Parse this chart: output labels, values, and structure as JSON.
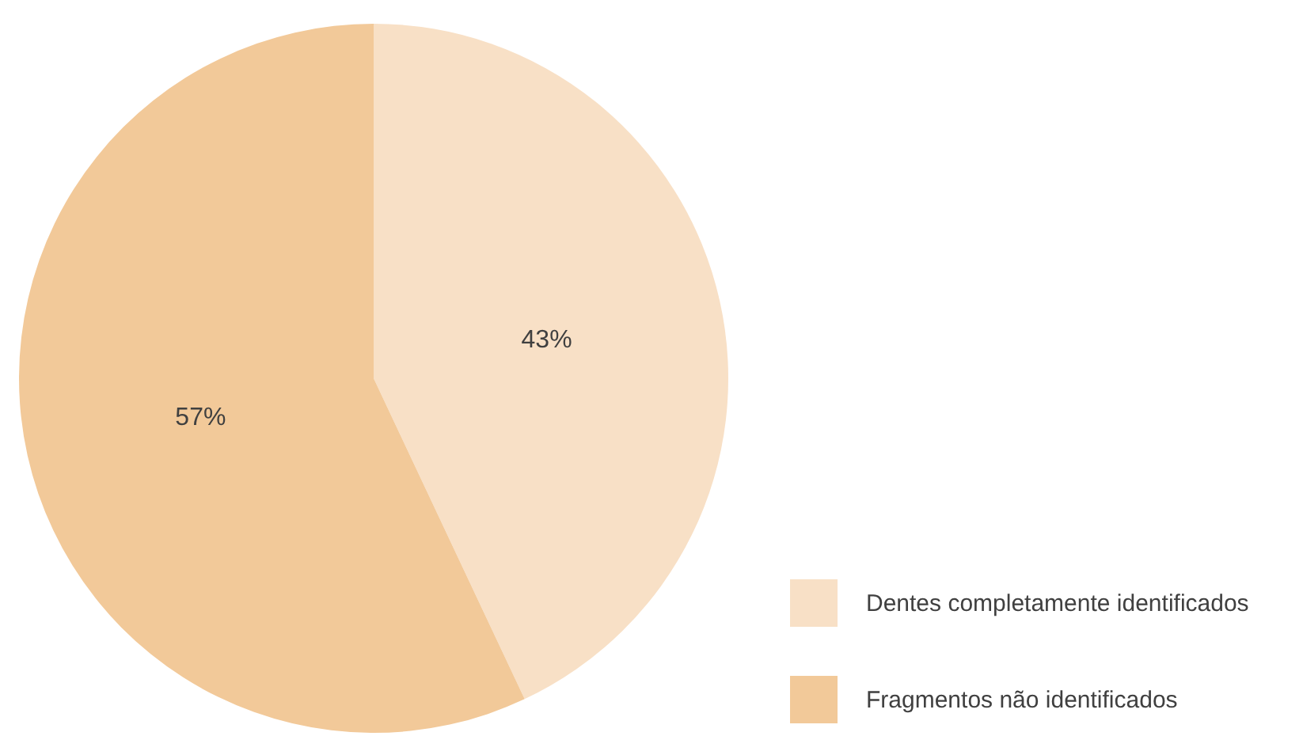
{
  "chart_data": {
    "type": "pie",
    "categories": [
      "Dentes completamente identificados",
      "Fragmentos não identificados"
    ],
    "values": [
      43,
      57
    ],
    "colors": [
      "#f8e0c6",
      "#f2c999"
    ],
    "value_labels": [
      "43%",
      "57%"
    ],
    "legend": "bottom right"
  }
}
